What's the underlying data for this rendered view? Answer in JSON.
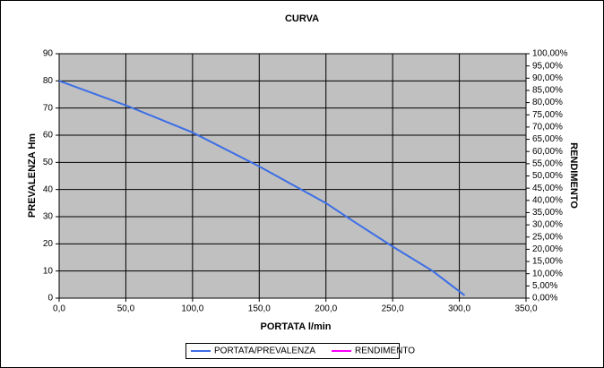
{
  "chart_data": {
    "type": "line",
    "title": "CURVA",
    "x_label": "PORTATA l/min",
    "y_label": "PREVALENZA Hm",
    "y2_label": "RENDIMENTO",
    "xlim": [
      0,
      350
    ],
    "xticks": [
      {
        "value": 0,
        "label": "0,0"
      },
      {
        "value": 50,
        "label": "50,0"
      },
      {
        "value": 100,
        "label": "100,0"
      },
      {
        "value": 150,
        "label": "150,0"
      },
      {
        "value": 200,
        "label": "200,0"
      },
      {
        "value": 250,
        "label": "250,0"
      },
      {
        "value": 300,
        "label": "300,0"
      },
      {
        "value": 350,
        "label": "350,0"
      }
    ],
    "ylim": [
      0,
      90
    ],
    "yticks": [
      0,
      10,
      20,
      30,
      40,
      50,
      60,
      70,
      80,
      90
    ],
    "y2lim": [
      0,
      100
    ],
    "y2ticks": [
      {
        "value": 0,
        "label": "0,00%"
      },
      {
        "value": 5,
        "label": "5,00%"
      },
      {
        "value": 10,
        "label": "10,00%"
      },
      {
        "value": 15,
        "label": "15,00%"
      },
      {
        "value": 20,
        "label": "20,00%"
      },
      {
        "value": 25,
        "label": "25,00%"
      },
      {
        "value": 30,
        "label": "30,00%"
      },
      {
        "value": 35,
        "label": "35,00%"
      },
      {
        "value": 40,
        "label": "40,00%"
      },
      {
        "value": 45,
        "label": "45,00%"
      },
      {
        "value": 50,
        "label": "50,00%"
      },
      {
        "value": 55,
        "label": "55,00%"
      },
      {
        "value": 60,
        "label": "60,00%"
      },
      {
        "value": 65,
        "label": "65,00%"
      },
      {
        "value": 70,
        "label": "70,00%"
      },
      {
        "value": 75,
        "label": "75,00%"
      },
      {
        "value": 80,
        "label": "80,00%"
      },
      {
        "value": 85,
        "label": "85,00%"
      },
      {
        "value": 90,
        "label": "90,00%"
      },
      {
        "value": 95,
        "label": "95,00%"
      },
      {
        "value": 100,
        "label": "100,00%"
      }
    ],
    "grid": true,
    "legend": "bottom",
    "x": [
      0,
      50,
      100,
      150,
      200,
      220,
      250,
      280,
      304
    ],
    "series": [
      {
        "name": "PORTATA/PREVALENZA",
        "color": "#3c6ee6",
        "values": [
          80,
          71,
          61,
          48.5,
          35,
          28.5,
          19,
          10,
          1
        ]
      },
      {
        "name": "RENDIMENTO",
        "color": "#ff00ff",
        "axis": "y2",
        "values": [
          null,
          null,
          null,
          null,
          null,
          null,
          null,
          null,
          null
        ]
      }
    ]
  }
}
